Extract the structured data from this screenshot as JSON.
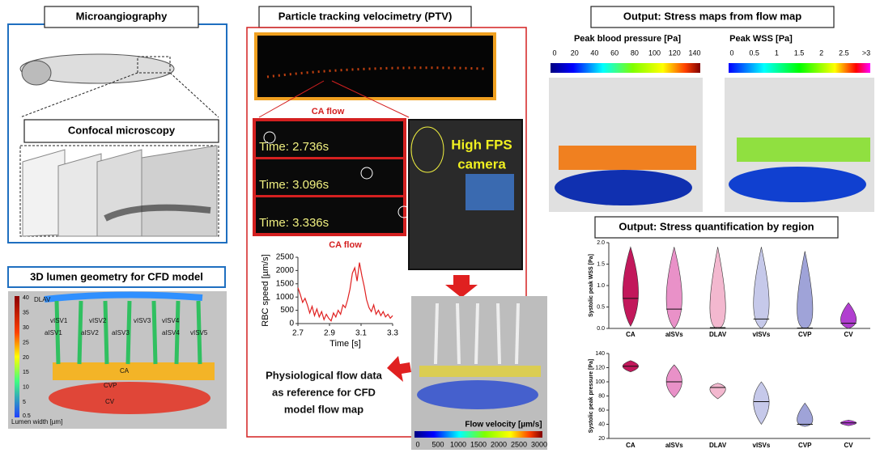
{
  "microangiography": {
    "title": "Microangiography",
    "confocal_title": "Confocal microscopy"
  },
  "lumen": {
    "title": "3D lumen geometry for CFD model",
    "labels": [
      "DLAV",
      "vISV1",
      "aISV1",
      "aISV2",
      "vISV2",
      "aISV3",
      "vISV3",
      "aISV4",
      "vISV4",
      "vISV5",
      "CA",
      "CVP",
      "CV"
    ],
    "colorbar": {
      "label": "Lumen width [µm]",
      "ticks": [
        40,
        35,
        30,
        25,
        20,
        15,
        10,
        5,
        0.5
      ]
    }
  },
  "ptv": {
    "title": "Particle tracking velocimetry (PTV)",
    "ca_flow": "CA flow",
    "times": [
      "Time: 2.736s",
      "Time: 3.096s",
      "Time: 3.336s"
    ],
    "camera": [
      "High FPS",
      "camera"
    ],
    "chart": {
      "type": "line",
      "title": "CA flow",
      "color": "#e02020",
      "xlabel": "Time [s]",
      "ylabel": "RBC speed [µm/s]",
      "x": [
        2.7,
        2.715,
        2.73,
        2.745,
        2.76,
        2.775,
        2.79,
        2.805,
        2.82,
        2.835,
        2.85,
        2.865,
        2.88,
        2.895,
        2.91,
        2.925,
        2.94,
        2.955,
        2.97,
        2.985,
        3.0,
        3.015,
        3.03,
        3.045,
        3.06,
        3.075,
        3.09,
        3.105,
        3.12,
        3.135,
        3.15,
        3.165,
        3.18,
        3.195,
        3.21,
        3.225,
        3.24,
        3.255,
        3.27,
        3.285,
        3.3
      ],
      "values": [
        1350,
        1100,
        800,
        950,
        700,
        400,
        650,
        300,
        550,
        250,
        450,
        150,
        350,
        200,
        100,
        400,
        250,
        500,
        350,
        700,
        600,
        900,
        1300,
        1900,
        2100,
        1600,
        2300,
        1800,
        1400,
        900,
        600,
        450,
        700,
        350,
        500,
        300,
        450,
        250,
        350,
        200,
        300
      ],
      "xlim": [
        2.7,
        3.3
      ],
      "xticks": [
        2.7,
        2.9,
        3.1,
        3.3
      ],
      "ylim": [
        0,
        2500
      ],
      "yticks": [
        0,
        500,
        1000,
        1500,
        2000,
        2500
      ]
    }
  },
  "cfd": {
    "note": [
      "Physiological flow data",
      "as reference for CFD",
      "model flow map"
    ],
    "colorbar": {
      "label": "Flow velocity [µm/s]",
      "ticks": [
        0,
        500,
        1000,
        1500,
        2000,
        2500,
        3000
      ]
    }
  },
  "stress_maps": {
    "title": "Output: Stress maps from flow map",
    "pressure": {
      "label": "Peak blood pressure [Pa]",
      "ticks": [
        0,
        20,
        40,
        60,
        80,
        100,
        120,
        140
      ]
    },
    "wss": {
      "label": "Peak WSS [Pa]",
      "ticks": [
        0,
        0.5,
        1,
        1.5,
        2,
        2.5,
        {
          "value": 3,
          "label": ">3"
        }
      ]
    }
  },
  "quantification": {
    "title": "Output: Stress quantification by region",
    "charts": [
      {
        "type": "violin",
        "ylabel": "Systolic peak WSS [Pa]",
        "categories": [
          "CA",
          "aISVs",
          "DLAV",
          "vISVs",
          "CVP",
          "CV"
        ],
        "colors": [
          "#c2185b",
          "#e991c8",
          "#f3b8cf",
          "#c6c9ea",
          "#9fa3d8",
          "#b13fd0"
        ],
        "values": [
          0.7,
          0.45,
          0.02,
          0.22,
          0.01,
          0.12
        ],
        "ranges": [
          [
            0.05,
            1.9
          ],
          [
            0,
            1.9
          ],
          [
            0,
            1.9
          ],
          [
            0,
            1.9
          ],
          [
            0,
            1.8
          ],
          [
            0,
            0.6
          ]
        ],
        "ylim": [
          0,
          2
        ],
        "yticks": [
          {
            "value": 0,
            "label": "0.0"
          },
          {
            "value": 0.5,
            "label": "0.5"
          },
          {
            "value": 1,
            "label": "1.0"
          },
          {
            "value": 1.5,
            "label": "1.5"
          },
          {
            "value": 2,
            "label": "2.0"
          }
        ]
      },
      {
        "type": "violin",
        "ylabel": "Systolic peak pressure [Pa]",
        "categories": [
          "CA",
          "aISVs",
          "DLAV",
          "vISVs",
          "CVP",
          "CV"
        ],
        "colors": [
          "#c2185b",
          "#e991c8",
          "#f3b8cf",
          "#c6c9ea",
          "#9fa3d8",
          "#b13fd0"
        ],
        "values": [
          122,
          100,
          92,
          72,
          40,
          42
        ],
        "ranges": [
          [
            114,
            130
          ],
          [
            78,
            124
          ],
          [
            76,
            98
          ],
          [
            40,
            100
          ],
          [
            37,
            70
          ],
          [
            38,
            46
          ]
        ],
        "ylim": [
          20,
          140
        ],
        "yticks": [
          20,
          40,
          60,
          80,
          100,
          120,
          140
        ]
      }
    ]
  }
}
